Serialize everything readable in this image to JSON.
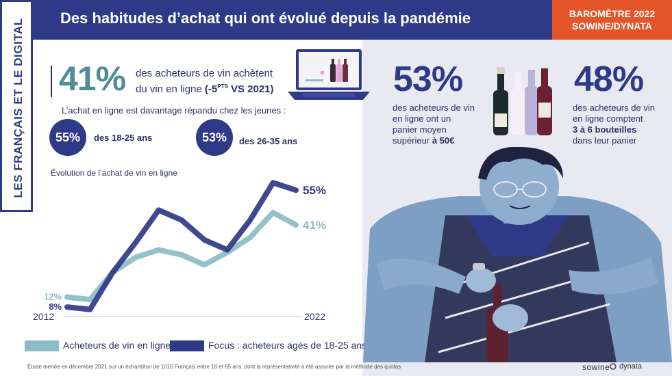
{
  "header": {
    "title": "Des habitudes d’achat qui ont évolué depuis la pandémie",
    "badge_line1": "BAROMÈTRE 2022",
    "badge_line2": "SOWINE/DYNATA"
  },
  "side_label": "LES FRANÇAIS ET LE DIGITAL",
  "stat_main": {
    "value": "41%",
    "line1": "des acheteurs de vin achètent",
    "line2_prefix": "du vin en ligne ",
    "line2_bold": "(-5",
    "line2_sup": "PTS",
    "line2_bold_end": " VS 2021)"
  },
  "young": {
    "intro": "L’achat en ligne est davantage répandu chez les jeunes :",
    "group1_value": "55%",
    "group1_label": "des 18-25 ans",
    "group2_value": "53%",
    "group2_label": "des 26-35 ans"
  },
  "stat_basket": {
    "value": "53%",
    "line1": "des acheteurs de vin",
    "line2": "en ligne ont un",
    "line3": "panier moyen",
    "line4_prefix": "supérieur ",
    "line4_bold": "à 50€"
  },
  "stat_bottles": {
    "value": "48%",
    "line1": "des acheteurs de vin",
    "line2": "en ligne comptent",
    "line3_bold": "3 à 6 bouteilles",
    "line4": "dans leur panier"
  },
  "chart_data": {
    "type": "line",
    "title": "Évolution de l’achat de vin en ligne",
    "x": [
      2012,
      2013,
      2014,
      2015,
      2016,
      2017,
      2018,
      2019,
      2020,
      2021,
      2022
    ],
    "xlabel_start": "2012",
    "xlabel_end": "2022",
    "ylim": [
      5,
      60
    ],
    "series": [
      {
        "name": "Acheteurs de vin en ligne",
        "color": "#8cbcc6",
        "values": [
          12,
          11,
          22,
          28,
          31,
          29,
          25,
          30,
          36,
          46,
          41
        ],
        "start_label": "12%",
        "end_label": "41%"
      },
      {
        "name": "Focus : acheteurs agés de 18-25 ans",
        "color": "#2e3a87",
        "values": [
          8,
          7,
          22,
          34,
          47,
          43,
          35,
          31,
          43,
          58,
          55
        ],
        "start_label": "8%",
        "end_label": "55%"
      }
    ]
  },
  "footer": {
    "note": "Étude menée en décembre 2021 sur un échantillon de 1015 Français entre 18 et 65 ans, dont la représentativité a été assurée par la méthode des quotas",
    "logo_sowine": "sowine",
    "logo_dynata": "dynata"
  }
}
